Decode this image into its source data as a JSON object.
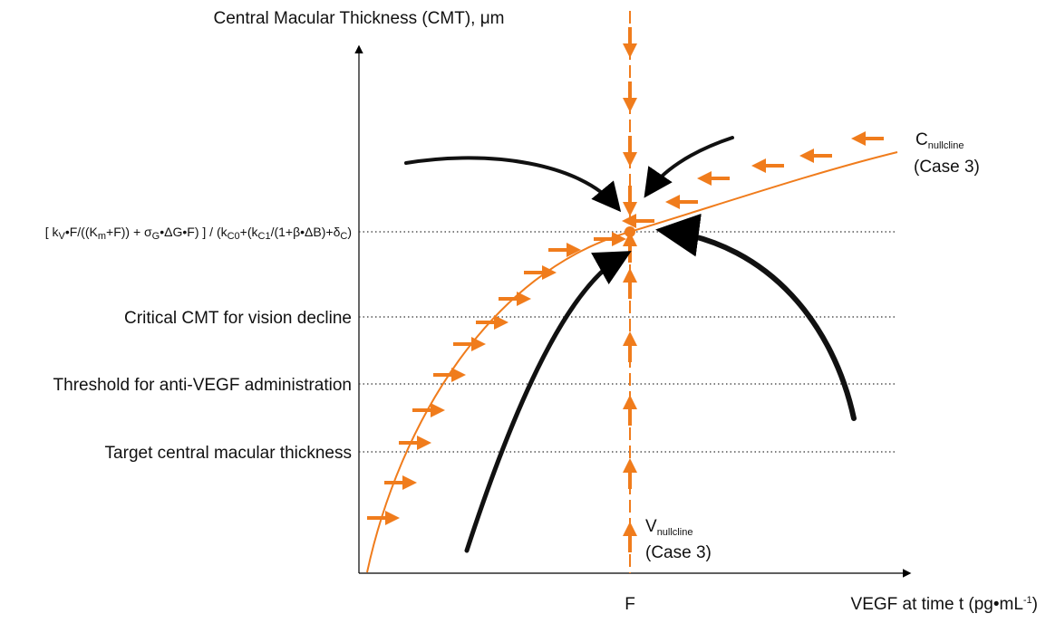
{
  "y_axis_title": "Central Macular Thickness (CMT), μm",
  "x_axis_title": [
    "VEGF at time t (pg•mL",
    "-1",
    ")"
  ],
  "x_marker": "F",
  "equilibrium_label": [
    "[ k",
    "V",
    "•F/((K",
    "m",
    "+F)) + σ",
    "G",
    "•ΔG•F) ] / (k",
    "C0",
    "+(k",
    "C1",
    "/(1+β•ΔB)+δ",
    "C",
    ")"
  ],
  "levels": [
    "Critical CMT for vision decline",
    "Threshold for anti-VEGF administration",
    "Target central macular thickness"
  ],
  "c_nullcline": {
    "label": [
      "C",
      "nullcline"
    ],
    "case": "(Case 3)"
  },
  "v_nullcline": {
    "label": [
      "V",
      "nullcline"
    ],
    "case": "(Case 3)"
  }
}
